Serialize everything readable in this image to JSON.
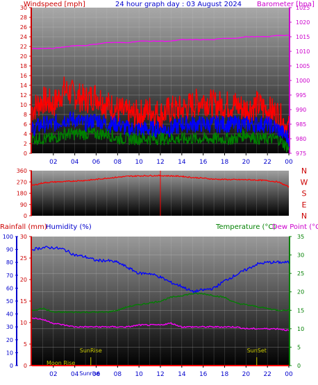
{
  "chart_data": [
    {
      "type": "line",
      "title": "24 hour graph day : 03 August 2024",
      "left_axis_label": "Windspeed [mph]",
      "right_axis_label": "Barometer [hpa]",
      "left_ticks": [
        "0",
        "2",
        "4",
        "6",
        "8",
        "10",
        "12",
        "14",
        "16",
        "18",
        "20",
        "22",
        "24",
        "26",
        "28",
        "30"
      ],
      "right_ticks": [
        "975",
        "980",
        "985",
        "990",
        "995",
        "1000",
        "1005",
        "1010",
        "1015",
        "1020",
        "1025"
      ],
      "x_ticks": [
        "02",
        "04",
        "06",
        "08",
        "10",
        "12",
        "14",
        "16",
        "18",
        "20",
        "22",
        "00"
      ],
      "ylim_left": [
        0,
        30
      ],
      "ylim_right": [
        975,
        1025
      ],
      "x": [
        "00",
        "01",
        "02",
        "03",
        "04",
        "05",
        "06",
        "07",
        "08",
        "09",
        "10",
        "11",
        "12",
        "13",
        "14",
        "15",
        "16",
        "17",
        "18",
        "19",
        "20",
        "21",
        "22",
        "23",
        "24"
      ],
      "series": [
        {
          "color": "#ff0000",
          "axis": "left",
          "values": [
            9,
            11,
            10,
            13,
            12,
            11,
            12,
            10,
            9,
            8,
            8,
            9,
            8,
            9,
            9,
            10,
            11,
            10,
            10,
            10,
            9,
            10,
            9,
            8,
            5
          ]
        },
        {
          "color": "#0000ff",
          "axis": "left",
          "values": [
            5,
            6,
            6,
            7,
            7,
            6,
            7,
            6,
            6,
            5,
            5,
            5,
            5,
            5,
            6,
            6,
            6,
            6,
            6,
            6,
            6,
            6,
            6,
            5,
            3
          ]
        },
        {
          "color": "#008000",
          "axis": "left",
          "values": [
            3,
            3,
            3,
            4,
            4,
            4,
            4,
            4,
            3,
            3,
            3,
            3,
            3,
            3,
            3,
            3,
            3,
            3,
            3,
            3,
            4,
            3,
            3,
            3,
            1
          ]
        },
        {
          "color": "#ff00ff",
          "axis": "right",
          "values": [
            1011,
            1011,
            1011,
            1011.5,
            1012,
            1012,
            1012.5,
            1013,
            1013,
            1013,
            1013.5,
            1013.5,
            1013.5,
            1013.5,
            1014,
            1014,
            1014,
            1014,
            1014.5,
            1014.5,
            1015,
            1015,
            1015,
            1015.5,
            1015.5
          ]
        }
      ]
    },
    {
      "type": "line",
      "left_ticks": [
        "0",
        "90",
        "180",
        "270",
        "360"
      ],
      "right_ticks": [
        "N",
        "E",
        "S",
        "W",
        "N"
      ],
      "x_ticks": [
        "02",
        "04",
        "06",
        "08",
        "10",
        "12",
        "14",
        "16",
        "18",
        "20",
        "22",
        "00"
      ],
      "ylim": [
        0,
        360
      ],
      "x": [
        "00",
        "01",
        "02",
        "03",
        "04",
        "05",
        "06",
        "07",
        "08",
        "09",
        "10",
        "11",
        "12",
        "13",
        "14",
        "15",
        "16",
        "17",
        "18",
        "19",
        "20",
        "21",
        "22",
        "23",
        "24"
      ],
      "series": [
        {
          "color": "#ff0000",
          "values": [
            240,
            262,
            270,
            272,
            278,
            282,
            290,
            300,
            308,
            315,
            318,
            320,
            320,
            318,
            315,
            305,
            300,
            292,
            290,
            288,
            288,
            285,
            280,
            270,
            230
          ]
        }
      ],
      "marker_x": 12
    },
    {
      "type": "line",
      "label_rainfall": "Rainfall (mm)",
      "label_humidity": "Humidity (%)",
      "label_temperature": "Temperature (°C)",
      "label_dewpoint": "Dew Point (°C)",
      "rain_ticks": [
        "0",
        "10",
        "20",
        "30",
        "40",
        "50",
        "60",
        "70",
        "80",
        "90",
        "100"
      ],
      "humidity_ticks": [
        "0",
        "5",
        "10",
        "15",
        "20",
        "25",
        "30"
      ],
      "temp_ticks": [
        "0",
        "5",
        "10",
        "15",
        "20",
        "25",
        "30",
        "35"
      ],
      "x_ticks": [
        "02",
        "04",
        "06",
        "08",
        "10",
        "12",
        "14",
        "16",
        "18",
        "20",
        "22",
        "00"
      ],
      "ylim": [
        0,
        35
      ],
      "x": [
        "00",
        "01",
        "02",
        "03",
        "04",
        "05",
        "06",
        "07",
        "08",
        "09",
        "10",
        "11",
        "12",
        "13",
        "14",
        "15",
        "16",
        "17",
        "18",
        "19",
        "20",
        "21",
        "22",
        "23",
        "24"
      ],
      "series": [
        {
          "color": "#0000ff",
          "values": [
            31.5,
            32,
            32,
            31.5,
            30,
            29.5,
            28.5,
            28.5,
            28,
            26.5,
            25,
            25,
            24,
            22.5,
            21.5,
            20,
            20.5,
            21,
            23,
            24.5,
            26,
            27.5,
            28,
            28,
            28
          ]
        },
        {
          "color": "#008000",
          "values": [
            15,
            15.5,
            14.5,
            14.5,
            14.5,
            14.5,
            14.5,
            14.5,
            15,
            16,
            16.5,
            17,
            17.5,
            18.5,
            19,
            19.5,
            19.5,
            19,
            18.5,
            17,
            16.5,
            16,
            15.5,
            15,
            15
          ]
        },
        {
          "color": "#ff00ff",
          "values": [
            13,
            12.5,
            11.5,
            11,
            10.5,
            10.5,
            10.5,
            10.5,
            10.5,
            10.5,
            11,
            11,
            11,
            11.5,
            10.5,
            10.5,
            10.5,
            10.5,
            10.5,
            10.5,
            10,
            10,
            10,
            10,
            9.5
          ]
        },
        {
          "color": "#ff0000",
          "values": [
            0,
            0,
            0,
            0,
            0,
            0,
            0,
            0,
            0,
            0,
            0,
            0,
            0,
            0,
            0,
            0,
            0,
            0,
            0,
            0,
            0,
            0,
            0,
            0,
            0
          ]
        }
      ],
      "annotations": [
        {
          "text": "SunRise",
          "hour": 5.5
        },
        {
          "text": "SunSet",
          "hour": 21
        },
        {
          "text": "Moon Rise",
          "hour": 2.7
        },
        {
          "text": "Sunrise",
          "hour": 5.4
        }
      ]
    }
  ]
}
